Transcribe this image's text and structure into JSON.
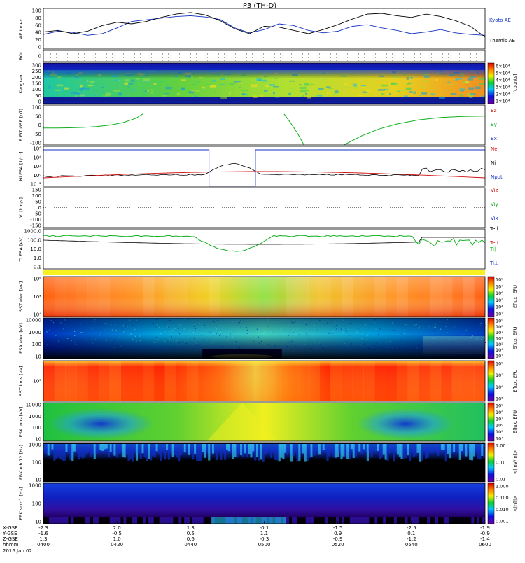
{
  "title": "P3 (TH-D)",
  "colors": {
    "blue": "#1030c0",
    "red": "#d01010",
    "green": "#10b020",
    "black": "#000000",
    "axis": "#000000"
  },
  "chart_data": [
    {
      "type": "line",
      "id": "ae",
      "ylabel": "AE Index",
      "yticks": [
        "100",
        "80",
        "60",
        "40",
        "20",
        "0"
      ],
      "ylim": [
        0,
        100
      ],
      "legend": [
        {
          "label": "Kyoto AE",
          "color": "blue"
        },
        {
          "label": "Themis AE",
          "color": "black"
        }
      ],
      "series": [
        {
          "name": "Kyoto AE",
          "color": "blue",
          "values": [
            36,
            44,
            41,
            34,
            38,
            52,
            68,
            72,
            76,
            80,
            82,
            79,
            73,
            52,
            40,
            48,
            62,
            58,
            46,
            40,
            44,
            56,
            60,
            52,
            46,
            38,
            42,
            48,
            40,
            36,
            34
          ]
        },
        {
          "name": "Themis AE",
          "color": "black",
          "values": [
            42,
            46,
            38,
            44,
            58,
            66,
            62,
            68,
            78,
            86,
            90,
            84,
            70,
            50,
            38,
            56,
            54,
            46,
            38,
            48,
            60,
            74,
            86,
            88,
            82,
            78,
            86,
            80,
            70,
            56,
            30
          ]
        }
      ]
    },
    {
      "type": "table",
      "id": "roi",
      "ylabel": "ROI",
      "yticks": [
        "0"
      ]
    },
    {
      "type": "heatmap",
      "id": "kaogram",
      "ylabel": "Keogram",
      "yticks": [
        "300",
        "250",
        "200",
        "150",
        "100",
        "50",
        "0"
      ],
      "colorbar_ticks": [
        "6×10⁴",
        "5×10⁴",
        "4×10⁴",
        "3×10⁴",
        "2×10⁴",
        "1×10⁴"
      ],
      "colorbar_label": "[counts]"
    },
    {
      "type": "line",
      "id": "bfield",
      "ylabel": "B FIT GSE [nT]",
      "yticks": [
        "100",
        "50",
        "0",
        "-50",
        "-100"
      ],
      "ylim": [
        -100,
        100
      ],
      "legend": [
        {
          "label": "Bz",
          "color": "red"
        },
        {
          "label": "By",
          "color": "green"
        },
        {
          "label": "Bx",
          "color": "blue"
        }
      ],
      "series": [
        {
          "name": "By seg1",
          "color": "green",
          "x": [
            0,
            0.03,
            0.06,
            0.09,
            0.12,
            0.15,
            0.18,
            0.21,
            0.225
          ],
          "values": [
            -15,
            -15,
            -14,
            -12,
            -8,
            -1,
            12,
            34,
            55
          ]
        },
        {
          "name": "By seg2",
          "color": "green",
          "x": [
            0.545,
            0.56,
            0.575,
            0.59
          ],
          "values": [
            55,
            10,
            -40,
            -100
          ]
        },
        {
          "name": "By seg3",
          "color": "green",
          "x": [
            0.68,
            0.72,
            0.76,
            0.8,
            0.85,
            0.9,
            0.95,
            1.0
          ],
          "values": [
            -100,
            -55,
            -20,
            5,
            26,
            38,
            43,
            45
          ]
        }
      ]
    },
    {
      "type": "line",
      "id": "density",
      "ylabel": "Ni ESA [1/cc]",
      "yticks": [
        "10⁶",
        "10⁴",
        "10²",
        "10⁰",
        "10⁻²"
      ],
      "legend": [
        {
          "label": "Ne",
          "color": "red"
        },
        {
          "label": "Ni",
          "color": "black"
        },
        {
          "label": "Npot",
          "color": "blue"
        }
      ]
    },
    {
      "type": "line",
      "id": "velocity",
      "ylabel": "Vi [km/s]",
      "yticks": [
        "150",
        "100",
        "50",
        "0",
        "-50",
        "-100",
        "-150"
      ],
      "legend": [
        {
          "label": "Viz",
          "color": "red"
        },
        {
          "label": "Viy",
          "color": "green"
        },
        {
          "label": "Vix",
          "color": "blue"
        }
      ]
    },
    {
      "type": "line",
      "id": "temperature",
      "ylabel": "Ti ESA [eV]",
      "yticks": [
        "1000.0",
        "100.0",
        "10.0",
        "1.0",
        "0.1"
      ],
      "legend": [
        {
          "label": "Tell",
          "color": "black"
        },
        {
          "label": "Te⊥",
          "color": "red"
        },
        {
          "label": "Ti∥",
          "color": "green"
        },
        {
          "label": "Ti⊥",
          "color": "blue"
        }
      ]
    },
    {
      "type": "heatmap",
      "id": "sst_e",
      "ylabel": "SST elec [eV]",
      "yticks": [
        "10⁶",
        "10⁵",
        "10⁴"
      ],
      "colorbar_ticks": [
        "10⁸",
        "10⁷",
        "10⁶",
        "10⁵",
        "10⁴",
        "10³"
      ],
      "colorbar_label": "Eflux, EFU"
    },
    {
      "type": "heatmap",
      "id": "esa_e",
      "ylabel": "ESA elec [eV]",
      "yticks": [
        "10000",
        "1000",
        "100",
        "10"
      ],
      "colorbar_ticks": [
        "10⁹",
        "10⁸",
        "10⁷",
        "10⁶",
        "10⁵",
        "10⁴",
        "10³"
      ],
      "colorbar_label": "Eflux, EFU"
    },
    {
      "type": "heatmap",
      "id": "sst_i",
      "ylabel": "SST ions [eV]",
      "yticks": [
        "10⁵"
      ],
      "colorbar_ticks": [
        "10⁸",
        "10⁷",
        "10⁶",
        "10⁵"
      ],
      "colorbar_label": "Eflux, EFU"
    },
    {
      "type": "heatmap",
      "id": "esa_i",
      "ylabel": "ESA ions [eV]",
      "yticks": [
        "10000",
        "1000",
        "100",
        "10"
      ],
      "colorbar_ticks": [
        "10⁹",
        "10⁸",
        "10⁷",
        "10⁶",
        "10⁵",
        "10⁴"
      ],
      "colorbar_label": "Eflux, EFU"
    },
    {
      "type": "heatmap",
      "id": "fbk_e",
      "ylabel": "FBK edc12 [Hz]",
      "yticks": [
        "1000",
        "100",
        "10"
      ],
      "colorbar_ticks": [
        "1.00",
        "0.10",
        "0.01"
      ],
      "colorbar_label": "<|mV/m|>"
    },
    {
      "type": "heatmap",
      "id": "fbk_b",
      "ylabel": "FBK scm1 [Hz]",
      "yticks": [
        "1000",
        "100",
        "10"
      ],
      "colorbar_ticks": [
        "1.000",
        "0.100",
        "0.010",
        "0.001"
      ],
      "colorbar_label": "<|nT|>"
    }
  ],
  "xaxis": {
    "row_labels": [
      "X-GSE",
      "Y-GSE",
      "Z-GSE",
      "hhmm",
      "2016 Jan 02"
    ],
    "ticks": [
      {
        "x": "-2.3",
        "y": "-1.6",
        "z": "1.3",
        "t": "0400"
      },
      {
        "x": "2.0",
        "y": "-0.5",
        "z": "1.0",
        "t": "0420"
      },
      {
        "x": "1.3",
        "y": "0.5",
        "z": "0.6",
        "t": "0440"
      },
      {
        "x": "-0.1",
        "y": "1.1",
        "z": "-0.3",
        "t": "0500"
      },
      {
        "x": "-1.5",
        "y": "0.9",
        "z": "-0.9",
        "t": "0520"
      },
      {
        "x": "-2.5",
        "y": "0.1",
        "z": "-1.2",
        "t": "0540"
      },
      {
        "x": "-1.9",
        "y": "-0.9",
        "z": "-1.4",
        "t": "0600"
      }
    ]
  }
}
